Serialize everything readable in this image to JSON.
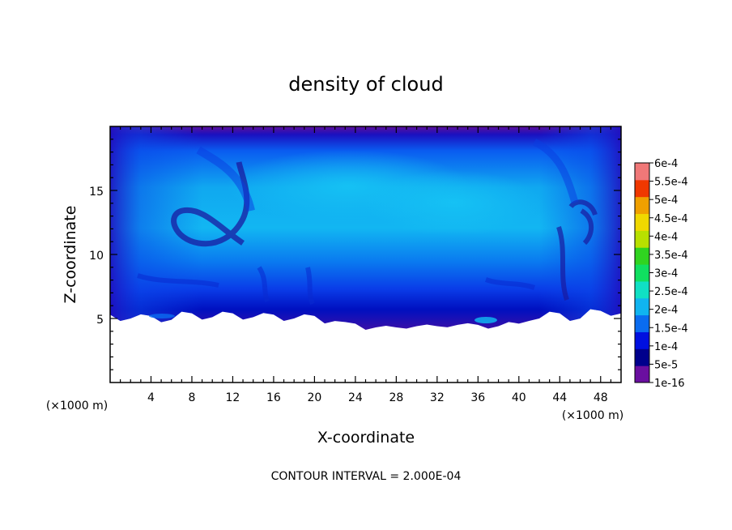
{
  "chart_data": {
    "type": "heatmap",
    "title": "density of cloud",
    "xlabel": "X-coordinate",
    "ylabel": "Z-coordinate",
    "x_unit_label": "(×1000 m)",
    "y_unit_label": "(×1000 m)",
    "xlim": [
      0,
      50
    ],
    "ylim": [
      0,
      20
    ],
    "x_ticks": [
      4,
      8,
      12,
      16,
      20,
      24,
      28,
      32,
      36,
      40,
      44,
      48
    ],
    "y_ticks": [
      5,
      10,
      15
    ],
    "footnote": "CONTOUR INTERVAL = 2.000E-04",
    "colorbar": {
      "levels": [
        "1e-16",
        "5e-5",
        "1e-4",
        "1.5e-4",
        "2e-4",
        "2.5e-4",
        "3e-4",
        "3.5e-4",
        "4e-4",
        "4.5e-4",
        "5e-4",
        "5.5e-4",
        "6e-4"
      ],
      "colors": [
        "#6a0fa0",
        "#00008c",
        "#0010e0",
        "#0a6cf0",
        "#10b4f0",
        "#10e0c4",
        "#10e060",
        "#30d420",
        "#b8e000",
        "#f0d800",
        "#f0a000",
        "#f03800",
        "#f07878"
      ]
    },
    "field_description": "cloud density fills z between roughly 4.5 and 19.5 km across all x; peak values about 1.5e-4 to 2e-4 in the interior; no cloud below about 5 km",
    "cloud_base_km": [
      [
        0,
        5.3
      ],
      [
        2,
        5.0
      ],
      [
        4,
        5.2
      ],
      [
        6,
        4.9
      ],
      [
        8,
        5.4
      ],
      [
        10,
        5.1
      ],
      [
        12,
        5.4
      ],
      [
        14,
        5.1
      ],
      [
        16,
        5.3
      ],
      [
        18,
        5.0
      ],
      [
        20,
        5.2
      ],
      [
        22,
        4.8
      ],
      [
        24,
        4.6
      ],
      [
        26,
        4.3
      ],
      [
        28,
        4.3
      ],
      [
        30,
        4.4
      ],
      [
        32,
        4.4
      ],
      [
        34,
        4.5
      ],
      [
        36,
        4.5
      ],
      [
        38,
        4.4
      ],
      [
        40,
        4.6
      ],
      [
        42,
        5.0
      ],
      [
        44,
        5.4
      ],
      [
        46,
        5.0
      ],
      [
        48,
        5.6
      ],
      [
        50,
        5.4
      ]
    ],
    "cloud_top_km": 19.6
  }
}
